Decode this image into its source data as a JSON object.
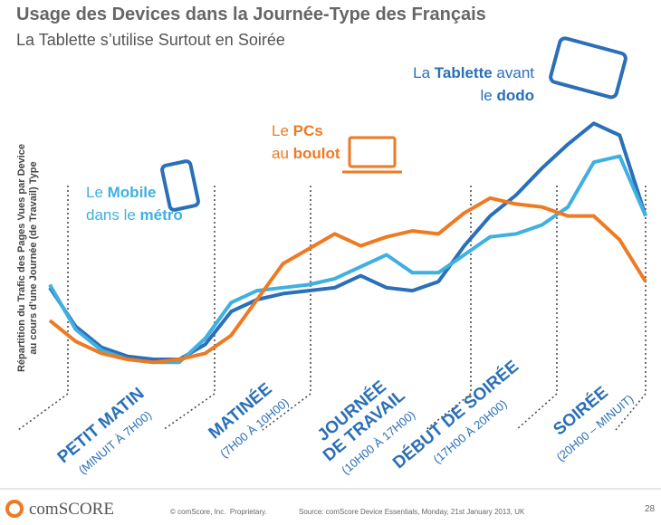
{
  "chart_data": {
    "type": "line",
    "title": "Usage des Devices dans la Journée-Type des Français",
    "subtitle": "La Tablette s’utilise Surtout en Soirée",
    "ylabel": [
      "Répartition du Trafic des Pages Vues par Device",
      "au cours d’une Journée (de Travail) Type"
    ],
    "x": [
      0,
      1,
      2,
      3,
      4,
      5,
      6,
      7,
      8,
      9,
      10,
      11,
      12,
      13,
      14,
      15,
      16,
      17,
      18,
      19,
      20,
      21,
      22,
      23
    ],
    "xlim": [
      0,
      23
    ],
    "ylim": [
      0,
      100
    ],
    "series": [
      {
        "name": "Tablette",
        "color": "#2a6fb8",
        "values": [
          34,
          21,
          14,
          11,
          10,
          10,
          15,
          26,
          30,
          32,
          33,
          34,
          38,
          34,
          33,
          36,
          48,
          58,
          65,
          74,
          82,
          89,
          85,
          58
        ],
        "callout": {
          "pre": "La ",
          "post": " avant",
          "line2": [
            "le ",
            "dodo"
          ]
        }
      },
      {
        "name": "Mobile",
        "color": "#3fb0e0",
        "values": [
          35,
          20,
          13,
          10,
          9,
          9,
          17,
          29,
          33,
          34,
          35,
          37,
          41,
          45,
          39,
          39,
          45,
          51,
          52,
          55,
          61,
          76,
          78,
          58
        ],
        "callout": {
          "pre": "Le ",
          "line2": [
            "dans le ",
            "métro"
          ]
        }
      },
      {
        "name": "PCs",
        "color": "#ee7a22",
        "values": [
          23,
          16,
          12,
          10,
          9,
          10,
          12,
          18,
          30,
          42,
          47,
          52,
          48,
          51,
          53,
          52,
          59,
          64,
          62,
          61,
          58,
          58,
          50,
          36
        ],
        "callout": {
          "pre": "Le ",
          "line2": [
            "au ",
            "boulot"
          ]
        }
      }
    ],
    "periods": [
      {
        "lines": [
          "PETIT MATIN"
        ],
        "note": "(MINUIT À 7H00)"
      },
      {
        "lines": [
          "MATINÉE"
        ],
        "note": "(7H00 À 10H00)"
      },
      {
        "lines": [
          "JOURNÉE",
          "DE TRAVAIL"
        ],
        "note": "(10H00 À 17H00)"
      },
      {
        "lines": [
          "DÉBUT DE SOIRÉE"
        ],
        "note": "(17H00 À 20H00)"
      },
      {
        "lines": [
          "SOIRÉE"
        ],
        "note": "(20H00 – MINUIT)"
      }
    ]
  },
  "footer": {
    "logo": "comSCORE",
    "copyright": "© comScore, Inc.  Proprietary.",
    "source": "Source: comScore Device Essentials, Monday, 21st January 2013, UK",
    "page": "28"
  }
}
